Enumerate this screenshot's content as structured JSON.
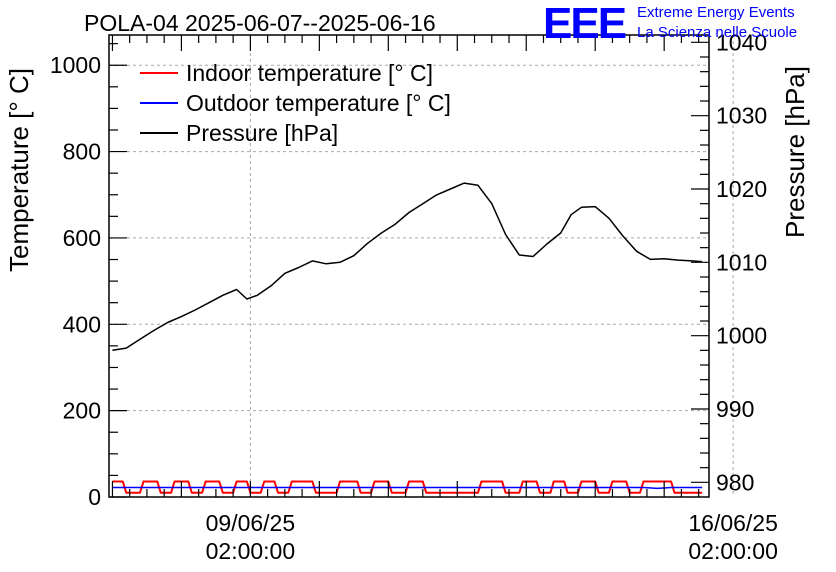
{
  "header": {
    "title": "POLA-04 2025-06-07--2025-06-16",
    "logo_mark": "EEE",
    "logo_line1": "Extreme Energy Events",
    "logo_line2": "La Scienza nelle Scuole"
  },
  "colors": {
    "indoor": "#ff0000",
    "outdoor": "#0000ff",
    "pressure": "#000000",
    "grid": "#aaaaaa",
    "logo": "#0000ff"
  },
  "chart_data": {
    "type": "line",
    "title": "POLA-04 2025-06-07--2025-06-16",
    "ylabel": "Temperature [° C]",
    "y2label": "Pressure [hPa]",
    "ylim": [
      0,
      1070
    ],
    "y2lim": [
      978,
      1041
    ],
    "xlim_days": [
      -2.05,
      6.65
    ],
    "grid": true,
    "legend_position": "top-left",
    "x_ticks": [
      {
        "day": 0,
        "date": "09/06/25",
        "time": "02:00:00"
      },
      {
        "day": 7,
        "date": "16/06/25",
        "time": "02:00:00"
      }
    ],
    "y_ticks": [
      0,
      200,
      400,
      600,
      800,
      1000
    ],
    "y2_ticks": [
      980,
      990,
      1000,
      1010,
      1020,
      1030,
      1040
    ],
    "series": [
      {
        "name": "Indoor temperature [° C]",
        "axis": "left",
        "color": "#ff0000",
        "x_days": [
          -2.0,
          -1.85,
          -1.8,
          -1.6,
          -1.55,
          -1.35,
          -1.3,
          -1.15,
          -1.1,
          -0.9,
          -0.85,
          -0.7,
          -0.65,
          -0.45,
          -0.4,
          -0.25,
          -0.2,
          -0.05,
          0.0,
          0.15,
          0.2,
          0.35,
          0.4,
          0.55,
          0.6,
          0.9,
          0.95,
          1.25,
          1.3,
          1.55,
          1.6,
          1.75,
          1.8,
          2.0,
          2.05,
          2.25,
          2.3,
          2.5,
          2.55,
          3.3,
          3.35,
          3.65,
          3.7,
          3.9,
          3.95,
          4.15,
          4.2,
          4.35,
          4.4,
          4.55,
          4.6,
          4.75,
          4.8,
          5.0,
          5.05,
          5.2,
          5.25,
          5.45,
          5.5,
          5.65,
          5.7,
          6.1,
          6.15,
          6.55
        ],
        "values": [
          36,
          36,
          10,
          10,
          36,
          36,
          10,
          10,
          36,
          36,
          10,
          10,
          36,
          36,
          10,
          10,
          36,
          36,
          10,
          10,
          36,
          36,
          10,
          10,
          36,
          36,
          10,
          10,
          36,
          36,
          10,
          10,
          36,
          36,
          10,
          10,
          36,
          36,
          10,
          10,
          36,
          36,
          10,
          10,
          36,
          36,
          10,
          10,
          36,
          36,
          10,
          10,
          36,
          36,
          10,
          10,
          36,
          36,
          10,
          10,
          36,
          36,
          10,
          10
        ]
      },
      {
        "name": "Outdoor temperature [° C]",
        "axis": "left",
        "color": "#0000ff",
        "x_days": [
          -2.0,
          5.7,
          5.9,
          6.1,
          6.55
        ],
        "values": [
          22,
          22,
          20,
          22,
          22
        ]
      },
      {
        "name": "Pressure [hPa]",
        "axis": "right",
        "color": "#000000",
        "x_days": [
          -2.0,
          -1.8,
          -1.6,
          -1.4,
          -1.2,
          -1.0,
          -0.8,
          -0.6,
          -0.4,
          -0.2,
          -0.05,
          0.1,
          0.3,
          0.5,
          0.7,
          0.9,
          1.1,
          1.3,
          1.5,
          1.7,
          1.9,
          2.1,
          2.3,
          2.5,
          2.7,
          2.9,
          3.1,
          3.3,
          3.5,
          3.7,
          3.9,
          4.1,
          4.3,
          4.5,
          4.65,
          4.8,
          5.0,
          5.2,
          5.4,
          5.6,
          5.8,
          6.0,
          6.2,
          6.4,
          6.55
        ],
        "values": [
          998.0,
          998.3,
          999.5,
          1000.7,
          1001.8,
          1002.6,
          1003.5,
          1004.5,
          1005.5,
          1006.3,
          1005.0,
          1005.5,
          1006.8,
          1008.5,
          1009.3,
          1010.2,
          1009.8,
          1010.0,
          1010.9,
          1012.6,
          1014.0,
          1015.2,
          1016.8,
          1018.0,
          1019.2,
          1020.0,
          1020.8,
          1020.5,
          1018.0,
          1013.8,
          1011.0,
          1010.8,
          1012.5,
          1014.0,
          1016.5,
          1017.5,
          1017.6,
          1016.0,
          1013.6,
          1011.5,
          1010.4,
          1010.5,
          1010.3,
          1010.2,
          1010.1
        ]
      }
    ]
  }
}
